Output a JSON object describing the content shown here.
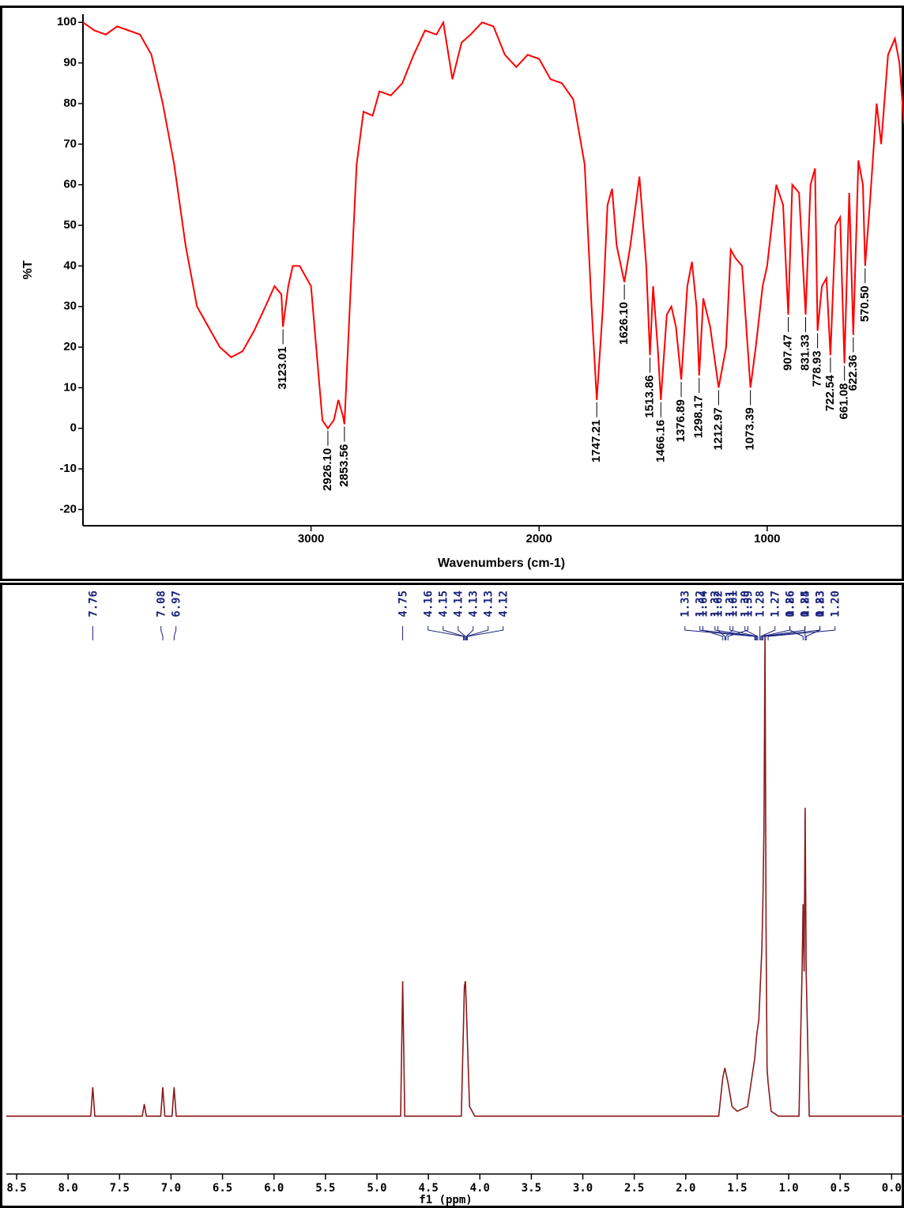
{
  "chart_data": [
    {
      "type": "line",
      "xlabel": "Wavenumbers (cm-1)",
      "ylabel": "%T",
      "xlim": [
        4000,
        400
      ],
      "ylim": [
        -24,
        102
      ],
      "xticks": [
        3000,
        2000,
        1000
      ],
      "yticks": [
        100,
        90,
        80,
        70,
        60,
        50,
        40,
        30,
        20,
        10,
        0,
        -10,
        -20
      ],
      "series": [
        {
          "name": "IR",
          "color": "#ff0000",
          "x": [
            4000,
            3950,
            3900,
            3850,
            3800,
            3750,
            3700,
            3650,
            3600,
            3550,
            3500,
            3450,
            3400,
            3350,
            3300,
            3250,
            3200,
            3160,
            3130,
            3123.01,
            3100,
            3080,
            3050,
            3000,
            2970,
            2950,
            2926.1,
            2900,
            2880,
            2860,
            2853.56,
            2830,
            2800,
            2770,
            2730,
            2700,
            2650,
            2600,
            2550,
            2500,
            2450,
            2420,
            2380,
            2340,
            2300,
            2250,
            2200,
            2150,
            2100,
            2050,
            2000,
            1950,
            1900,
            1850,
            1800,
            1770,
            1747.21,
            1720,
            1700,
            1680,
            1660,
            1626.1,
            1600,
            1560,
            1530,
            1513.86,
            1500,
            1480,
            1466.16,
            1440,
            1420,
            1400,
            1376.89,
            1350,
            1330,
            1310,
            1298.17,
            1280,
            1250,
            1212.97,
            1180,
            1160,
            1140,
            1110,
            1073.39,
            1050,
            1020,
            1000,
            960,
            930,
            907.47,
            890,
            860,
            831.33,
            810,
            790,
            778.93,
            760,
            740,
            722.54,
            700,
            680,
            661.08,
            640,
            622.36,
            600,
            580,
            570.5,
            550,
            520,
            500,
            470,
            440,
            420,
            400
          ],
          "values": [
            100,
            98,
            97,
            99,
            98,
            97,
            92,
            80,
            65,
            45,
            30,
            25,
            20,
            17.5,
            19,
            24,
            30,
            35,
            33,
            25,
            35,
            40,
            40,
            35,
            15,
            2,
            0,
            2,
            7,
            3,
            1,
            30,
            65,
            78,
            77,
            83,
            82,
            85,
            92,
            98,
            97,
            100,
            86,
            95,
            97,
            100,
            99,
            92,
            89,
            92,
            91,
            86,
            85,
            81,
            65,
            30,
            7,
            30,
            55,
            59,
            45,
            36,
            45,
            62,
            40,
            18,
            35,
            20,
            7,
            28,
            30,
            25,
            12,
            35,
            41,
            30,
            13,
            32,
            25,
            10,
            20,
            44,
            42,
            40,
            10,
            20,
            35,
            40,
            60,
            55,
            28,
            60,
            58,
            28,
            60,
            64,
            24,
            35,
            37,
            18,
            50,
            52,
            16,
            58,
            23,
            66,
            60,
            40,
            55,
            80,
            70,
            92,
            96,
            90,
            75
          ]
        }
      ],
      "annotations": [
        {
          "x": 3123.01,
          "label": "3123.01"
        },
        {
          "x": 2926.1,
          "label": "2926.10"
        },
        {
          "x": 2853.56,
          "label": "2853.56"
        },
        {
          "x": 1747.21,
          "label": "1747.21"
        },
        {
          "x": 1626.1,
          "label": "1626.10"
        },
        {
          "x": 1513.86,
          "label": "1513.86"
        },
        {
          "x": 1466.16,
          "label": "1466.16"
        },
        {
          "x": 1376.89,
          "label": "1376.89"
        },
        {
          "x": 1298.17,
          "label": "1298.17"
        },
        {
          "x": 1212.97,
          "label": "1212.97"
        },
        {
          "x": 1073.39,
          "label": "1073.39"
        },
        {
          "x": 907.47,
          "label": "907.47"
        },
        {
          "x": 831.33,
          "label": "831.33"
        },
        {
          "x": 778.93,
          "label": "778.93"
        },
        {
          "x": 722.54,
          "label": "722.54"
        },
        {
          "x": 661.08,
          "label": "661.08"
        },
        {
          "x": 622.36,
          "label": "622.36"
        },
        {
          "x": 570.5,
          "label": "570.50"
        }
      ]
    },
    {
      "type": "line",
      "xlabel": "f1 (ppm)",
      "xlim": [
        8.6,
        -0.12
      ],
      "ylim": [
        -0.12,
        1.02
      ],
      "xticks": [
        {
          "value": 8.5,
          "label": "8.5"
        },
        {
          "value": 8,
          "label": "8.0"
        },
        {
          "value": 7.5,
          "label": "7.5"
        },
        {
          "value": 7,
          "label": "7.0"
        },
        {
          "value": 6.5,
          "label": "6.5"
        },
        {
          "value": 6,
          "label": "6.0"
        },
        {
          "value": 5.5,
          "label": "5.5"
        },
        {
          "value": 5,
          "label": "5.0"
        },
        {
          "value": 4.5,
          "label": "4.5"
        },
        {
          "value": 4,
          "label": "4.0"
        },
        {
          "value": 3.5,
          "label": "3.5"
        },
        {
          "value": 3,
          "label": "3.0"
        },
        {
          "value": 2.5,
          "label": "2.5"
        },
        {
          "value": 2,
          "label": "2.0"
        },
        {
          "value": 1.5,
          "label": "1.5"
        },
        {
          "value": 1,
          "label": "1.0"
        },
        {
          "value": 0.5,
          "label": "0.5"
        },
        {
          "value": 0,
          "label": "0.0"
        }
      ],
      "series": [
        {
          "name": "1H NMR",
          "color": "#8b1a1a",
          "x": [
            8.6,
            7.78,
            7.76,
            7.74,
            7.28,
            7.26,
            7.24,
            7.1,
            7.08,
            7.06,
            6.99,
            6.97,
            6.95,
            4.77,
            4.75,
            4.73,
            4.18,
            4.16,
            4.15,
            4.14,
            4.13,
            4.12,
            4.1,
            4.05,
            1.68,
            1.64,
            1.62,
            1.61,
            1.59,
            1.55,
            1.5,
            1.4,
            1.33,
            1.31,
            1.29,
            1.27,
            1.26,
            1.25,
            1.24,
            1.23,
            1.22,
            1.21,
            1.2,
            1.17,
            1.1,
            0.9,
            0.87,
            0.86,
            0.85,
            0.84,
            0.83,
            0.8,
            -0.12
          ],
          "values": [
            0,
            0,
            0.06,
            0,
            0,
            0.025,
            0,
            0,
            0.06,
            0,
            0,
            0.06,
            0,
            0,
            0.28,
            0,
            0,
            0.18,
            0.27,
            0.28,
            0.22,
            0.15,
            0.02,
            0,
            0,
            0.08,
            0.1,
            0.09,
            0.07,
            0.02,
            0.01,
            0.02,
            0.12,
            0.17,
            0.2,
            0.3,
            0.35,
            0.45,
            0.6,
            1.0,
            0.4,
            0.1,
            0.07,
            0.01,
            0,
            0,
            0.3,
            0.44,
            0.3,
            0.64,
            0.3,
            0,
            0
          ]
        }
      ],
      "annotations": [
        {
          "x": 7.76,
          "label": "7.76"
        },
        {
          "x": 7.08,
          "label": "7.08"
        },
        {
          "x": 6.97,
          "label": "6.97"
        },
        {
          "x": 4.75,
          "label": "4.75"
        },
        {
          "x": 4.16,
          "label": "4.16"
        },
        {
          "x": 4.15,
          "label": "4.15"
        },
        {
          "x": 4.14,
          "label": "4.14"
        },
        {
          "x": 4.13,
          "label": "4.13"
        },
        {
          "x": 4.13,
          "label": "4.13"
        },
        {
          "x": 4.12,
          "label": "4.12"
        },
        {
          "x": 1.64,
          "label": "1.64"
        },
        {
          "x": 1.62,
          "label": "1.62"
        },
        {
          "x": 1.61,
          "label": "1.61"
        },
        {
          "x": 1.59,
          "label": "1.59"
        },
        {
          "x": 1.33,
          "label": "1.33"
        },
        {
          "x": 1.32,
          "label": "1.32"
        },
        {
          "x": 1.32,
          "label": "1.32"
        },
        {
          "x": 1.31,
          "label": "1.31"
        },
        {
          "x": 1.3,
          "label": "1.30"
        },
        {
          "x": 1.28,
          "label": "1.28"
        },
        {
          "x": 1.27,
          "label": "1.27"
        },
        {
          "x": 1.26,
          "label": "1.26"
        },
        {
          "x": 1.25,
          "label": "1.25"
        },
        {
          "x": 1.23,
          "label": "1.23"
        },
        {
          "x": 1.2,
          "label": "1.20"
        },
        {
          "x": 0.86,
          "label": "0.86"
        },
        {
          "x": 0.84,
          "label": "0.84"
        },
        {
          "x": 0.83,
          "label": "0.83"
        }
      ]
    }
  ]
}
